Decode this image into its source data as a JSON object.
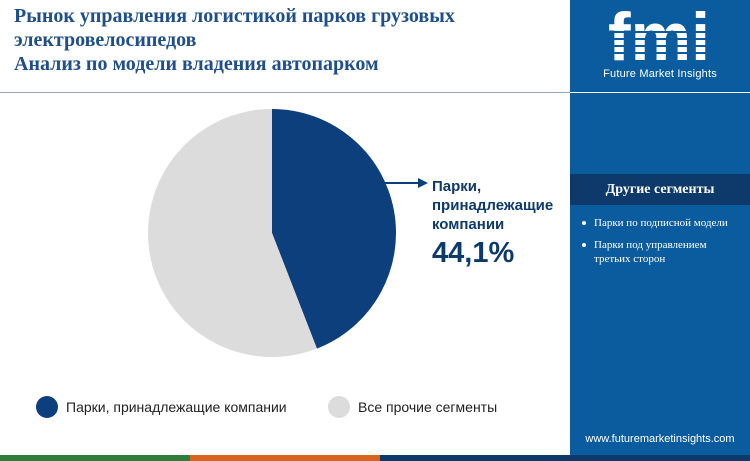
{
  "title": {
    "line1": "Рынок управления логистикой парков грузовых",
    "line2": "электровелосипедов",
    "line3": "Анализ по модели владения автопарком"
  },
  "logo": {
    "letters": "fmi",
    "subtitle": "Future Market Insights"
  },
  "sidebar": {
    "header": "Другие сегменты",
    "items": [
      {
        "label": "Парки по подписной модели"
      },
      {
        "label": "Парки под управлением третьих сторон"
      }
    ],
    "website": "www.futuremarketinsights.com"
  },
  "callout": {
    "label": "Парки, принадлежащие компании",
    "value": "44,1%"
  },
  "colors": {
    "company_owned": "#0d3f7c",
    "others": "#dcdcdc",
    "panel": "#0b5c9e",
    "title": "#1f4f8a",
    "bottom_bar": [
      "#2f7d3a",
      "#d9641e",
      "#0d3a6b"
    ]
  },
  "chart_data": {
    "type": "pie",
    "slices": [
      {
        "name": "Парки, принадлежащие компании",
        "value": 44.1,
        "color": "#0d3f7c"
      },
      {
        "name": "Все прочие сегменты",
        "value": 55.9,
        "color": "#dcdcdc"
      }
    ],
    "start_angle_deg": 0,
    "direction": "clockwise",
    "legend": "bottom",
    "title": "Рынок управления логистикой парков грузовых электровелосипедов Анализ по модели владения автопарком"
  }
}
